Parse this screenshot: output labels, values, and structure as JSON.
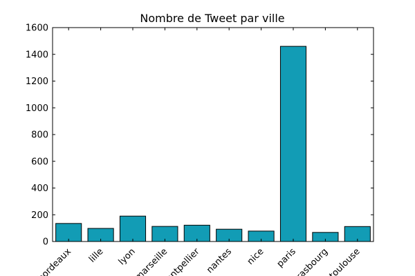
{
  "chart_data": {
    "type": "bar",
    "title": "Nombre de Tweet par ville",
    "xlabel": "",
    "ylabel": "",
    "categories": [
      "bordeaux",
      "lille",
      "lyon",
      "marseille",
      "montpellier",
      "nantes",
      "nice",
      "paris",
      "strasbourg",
      "toulouse"
    ],
    "values": [
      135,
      98,
      190,
      113,
      122,
      92,
      78,
      1460,
      68,
      112
    ],
    "ylim": [
      0,
      1600
    ],
    "yticks": [
      0,
      200,
      400,
      600,
      800,
      1000,
      1200,
      1400,
      1600
    ],
    "bar_color": "#129cb5",
    "edge_color": "#000000",
    "grid": false,
    "xtick_rotation": "45"
  }
}
